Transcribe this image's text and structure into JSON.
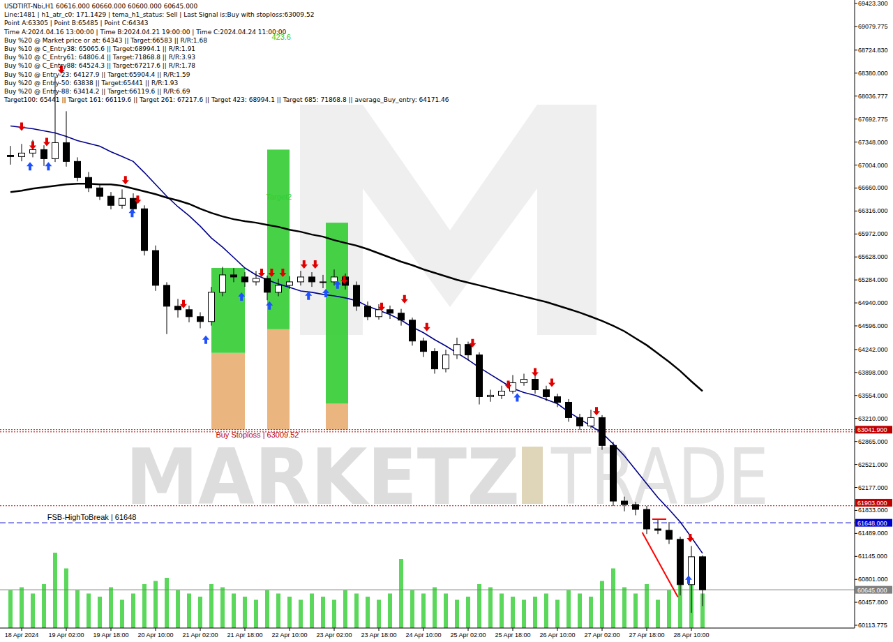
{
  "chart_data": {
    "type": "candlestick",
    "grid": false,
    "info_lines": [
      "USDTIRT-Nbi,H1  60616.000 60660.000 60600.000 60645.000",
      "Line:1481 | h1_atr_c0: 171.1429 | tema_h1_status: Sell | Last Signal is:Buy with stoploss:63009.52",
      "Point A:63305 | Point B:65485 | Point C:64343",
      "Time A:2024.04.16 13:00:00 | Time B:2024.04.21 19:00:00 | Time C:2024.04.24 11:00:00",
      "Buy %20 @ Market price or at: 64343 || Target:66583 || R/R:1.68",
      "Buy %10 @ C_Entry38: 65065.6 || Target:68994.1 || R/R:1.91",
      "Buy %10 @ C_Entry61: 64806.4 || Target:71868.8 || R/R:3.93",
      "Buy %10 @ C_Entry88: 64524.3 || Target:67217.6 || R/R:1.78",
      "Buy %10 @ Entry-23: 64127.9 || Target:65904.4 || R/R:1.59",
      "Buy %20 @ Entry-50: 63838 || Target:65441 || R/R:1.93",
      "Buy %20 @ Entry-88: 63414.2 || Target:66119.6 || R/R:6.69",
      "Target100: 65441 || Target 161: 66119.6 || Target 261: 67217.6 || Target 423: 68994.1 || Target 685: 71868.8 || average_Buy_entry: 64171.46"
    ],
    "watermark": [
      "MARKETZ",
      "TRADE"
    ],
    "categories": [
      null,
      "18 Apr 2024",
      null,
      null,
      null,
      "19 Apr 02:00",
      null,
      null,
      null,
      "19 Apr 18:00",
      null,
      null,
      null,
      "20 Apr 10:00",
      null,
      null,
      null,
      "21 Apr 02:00",
      null,
      null,
      null,
      "21 Apr 18:00",
      null,
      null,
      null,
      "22 Apr 10:00",
      null,
      null,
      null,
      "23 Apr 02:00",
      null,
      null,
      null,
      "23 Apr 18:00",
      null,
      null,
      null,
      "24 Apr 10:00",
      null,
      null,
      null,
      "25 Apr 02:00",
      null,
      null,
      null,
      "25 Apr 18:00",
      null,
      null,
      null,
      "26 Apr 10:00",
      null,
      null,
      null,
      "27 Apr 02:00",
      null,
      null,
      null,
      "27 Apr 18:00",
      null,
      null,
      null,
      "28 Apr 10:00",
      null
    ],
    "ylim": [
      60072,
      69475
    ],
    "yticks": [
      {
        "value": 69423.3,
        "label": "69423.300"
      },
      {
        "value": 69079.775,
        "label": "69079.775"
      },
      {
        "value": 68724.83,
        "label": "68724.830"
      },
      {
        "value": 68380,
        "label": "68380.000"
      },
      {
        "value": 68036.777,
        "label": "68036.777"
      },
      {
        "value": 67692.775,
        "label": "67692.775"
      },
      {
        "value": 67348,
        "label": "67348.000"
      },
      {
        "value": 67004,
        "label": "67004.000"
      },
      {
        "value": 66660,
        "label": "66660.000"
      },
      {
        "value": 66316,
        "label": "66316.000"
      },
      {
        "value": 65972,
        "label": "65972.000"
      },
      {
        "value": 65628,
        "label": "65628.000"
      },
      {
        "value": 65284,
        "label": "65284.000"
      },
      {
        "value": 64940,
        "label": "64940.000"
      },
      {
        "value": 64596,
        "label": "64596.000"
      },
      {
        "value": 64242,
        "label": "64242.000"
      },
      {
        "value": 63898,
        "label": "63898.000"
      },
      {
        "value": 63554,
        "label": "63554.000"
      },
      {
        "value": 63210,
        "label": "63210.000"
      },
      {
        "value": 62865,
        "label": "62865.000"
      },
      {
        "value": 62521,
        "label": "62521.000"
      },
      {
        "value": 62177,
        "label": "62177.000"
      },
      {
        "value": 61833,
        "label": "61833.000"
      },
      {
        "value": 61489,
        "label": "61489.000"
      },
      {
        "value": 61145,
        "label": "61145.000"
      },
      {
        "value": 60801,
        "label": "60801.000"
      },
      {
        "value": 60457.8,
        "label": "60457.800"
      },
      {
        "value": 60113.775,
        "label": "60113.775"
      }
    ],
    "y2lim": [
      0,
      1000
    ],
    "series": [
      {
        "type": "candlestick",
        "color": "#000000",
        "open": [
          67150,
          67131,
          67183,
          67235,
          67099,
          67339,
          67058,
          66818,
          66662,
          66537,
          66401,
          66505,
          66349,
          65724,
          65203,
          64890,
          64838,
          64734,
          64661,
          65099,
          65359,
          65328,
          65255,
          65307,
          65099,
          65203,
          65255,
          65328,
          65255,
          65255,
          65328,
          65203,
          64890,
          64734,
          64838,
          64786,
          64682,
          64369,
          64213,
          63952,
          64161,
          64317,
          64161,
          63536,
          63557,
          63619,
          63744,
          63796,
          63640,
          63536,
          63452,
          63223,
          63098,
          63223,
          62806,
          61973,
          61921,
          61848,
          61556,
          61535,
          61400,
          60722,
          61139
        ],
        "high": [
          67290,
          67320,
          67380,
          67300,
          68330,
          67810,
          67120,
          66900,
          66720,
          66600,
          66640,
          66580,
          66400,
          65800,
          65250,
          65000,
          64900,
          64800,
          65180,
          65480,
          65460,
          65400,
          65420,
          65350,
          65300,
          65340,
          65420,
          65400,
          65360,
          65440,
          65380,
          65260,
          64960,
          64920,
          64900,
          64850,
          64720,
          64420,
          64260,
          64240,
          64420,
          64360,
          64200,
          63640,
          63700,
          63860,
          63880,
          63860,
          63700,
          63580,
          63500,
          63280,
          63340,
          63260,
          62860,
          62040,
          61960,
          61900,
          61700,
          61660,
          61440,
          61300,
          61160
        ],
        "low": [
          67010,
          67060,
          67120,
          66990,
          67050,
          66980,
          66760,
          66600,
          66480,
          66340,
          66350,
          66280,
          65650,
          65120,
          64473,
          64720,
          64650,
          64560,
          64600,
          65040,
          65250,
          65180,
          65200,
          64980,
          65040,
          65150,
          65200,
          65180,
          65160,
          65200,
          65140,
          64820,
          64680,
          64690,
          64700,
          64600,
          64300,
          64130,
          63880,
          63900,
          64100,
          64080,
          63420,
          63460,
          63500,
          63580,
          63700,
          63580,
          63470,
          63380,
          63160,
          63040,
          63060,
          62740,
          61900,
          61820,
          61760,
          61480,
          61480,
          61330,
          60560,
          60300,
          60400
        ],
        "close": [
          67131,
          67183,
          67235,
          67099,
          67339,
          67058,
          66818,
          66662,
          66537,
          66401,
          66505,
          66349,
          65724,
          65203,
          64890,
          64838,
          64734,
          64661,
          65099,
          65359,
          65328,
          65255,
          65307,
          65099,
          65203,
          65255,
          65328,
          65255,
          65255,
          65328,
          65203,
          64890,
          64734,
          64838,
          64786,
          64682,
          64369,
          64213,
          63952,
          64161,
          64317,
          64161,
          63536,
          63557,
          63619,
          63744,
          63796,
          63640,
          63536,
          63452,
          63223,
          63098,
          63223,
          62806,
          61973,
          61921,
          61848,
          61556,
          61535,
          61400,
          60722,
          61139,
          60645
        ]
      },
      {
        "type": "line",
        "color": "#00008b",
        "line_style": "solid",
        "values": [
          67589,
          67568,
          67547,
          67516,
          67485,
          67433,
          67370,
          67328,
          67287,
          67203,
          67131,
          67058,
          66891,
          66714,
          66537,
          66380,
          66245,
          66088,
          65911,
          65776,
          65620,
          65463,
          65359,
          65286,
          65224,
          65172,
          65119,
          65099,
          65067,
          65046,
          65015,
          64974,
          64890,
          64828,
          64765,
          64682,
          64578,
          64494,
          64390,
          64296,
          64192,
          64088,
          63973,
          63869,
          63765,
          63661,
          63598,
          63557,
          63494,
          63431,
          63306,
          63202,
          63098,
          62994,
          62827,
          62650,
          62442,
          62233,
          62025,
          61848,
          61660,
          61431,
          61191
        ]
      },
      {
        "type": "line",
        "color": "#000000",
        "line_style": "solid",
        "values": [
          66599,
          66620,
          66651,
          66672,
          66693,
          66714,
          66724,
          66724,
          66714,
          66714,
          66693,
          66651,
          66610,
          66568,
          66516,
          66474,
          66422,
          66349,
          66287,
          66235,
          66193,
          66162,
          66141,
          66109,
          66078,
          66036,
          66005,
          65963,
          65932,
          65880,
          65838,
          65797,
          65745,
          65682,
          65620,
          65557,
          65505,
          65442,
          65390,
          65338,
          65286,
          65244,
          65203,
          65161,
          65119,
          65078,
          65036,
          64994,
          64953,
          64901,
          64849,
          64796,
          64734,
          64671,
          64598,
          64515,
          64411,
          64307,
          64182,
          64057,
          63921,
          63765,
          63619
        ]
      },
      {
        "type": "bar",
        "axis": "y2",
        "color": "#32cd32",
        "values": [
          60,
          65,
          55,
          70,
          120,
          95,
          60,
          55,
          50,
          65,
          45,
          55,
          70,
          75,
          80,
          60,
          55,
          50,
          70,
          65,
          55,
          50,
          45,
          60,
          55,
          50,
          45,
          55,
          50,
          45,
          60,
          55,
          50,
          45,
          55,
          110,
          60,
          55,
          65,
          55,
          45,
          50,
          70,
          65,
          55,
          50,
          45,
          50,
          55,
          45,
          60,
          55,
          50,
          75,
          95,
          65,
          55,
          70,
          45,
          60,
          85,
          90,
          55
        ]
      }
    ],
    "hlines": [
      {
        "value": 63041.9,
        "label": "63041.900",
        "color": "#c00000",
        "line_style": "dotted"
      },
      {
        "value": 63009.52,
        "color": "#c00000",
        "line_style": "dotted"
      },
      {
        "value": 61903,
        "label": "61903.000",
        "color": "#c00000",
        "line_style": "dotted"
      },
      {
        "value": 61648,
        "label": "61648.000",
        "color": "#0000cd",
        "line_style": "dashed"
      },
      {
        "value": 60645,
        "label": "60645.000",
        "color": "#808080",
        "line_style": "solid"
      }
    ],
    "zones": [
      {
        "x0": 18,
        "x1": 21,
        "top": 65463,
        "mid": 64192,
        "bottom": 63041.9
      },
      {
        "x0": 23,
        "x1": 25,
        "top": 67235,
        "mid": 64546,
        "bottom": 63041.9
      },
      {
        "x0": 28.25,
        "x1": 30.25,
        "top": 66141,
        "mid": 63431,
        "bottom": 63041.9
      }
    ],
    "annotations": [
      {
        "text": "Buy Stoploss | 63009.52",
        "x": 18.4,
        "y": 62921,
        "color": "#c00000"
      },
      {
        "text": "FSB-HighToBreak | 61648",
        "x": 3.3,
        "y": 61691,
        "color": "#000000"
      },
      {
        "text": "Target2",
        "x": 22.9,
        "y": 66484,
        "color": "#32cd32"
      },
      {
        "text": "423.6",
        "x": 23.4,
        "y": 68881,
        "color": "#32cd32"
      }
    ],
    "signals": {
      "sell": {
        "color": "#e00000",
        "points": [
          [
            1,
            67547
          ],
          [
            2,
            67266
          ],
          [
            3.25,
            67318
          ],
          [
            4.56,
            68402
          ],
          [
            10.3,
            66745
          ],
          [
            11.4,
            66453
          ],
          [
            15.5,
            64890
          ],
          [
            22.5,
            65359
          ],
          [
            23.4,
            65359
          ],
          [
            24.4,
            65359
          ],
          [
            26.3,
            65484
          ],
          [
            27.3,
            65484
          ],
          [
            29.9,
            65255
          ],
          [
            33.25,
            64849
          ],
          [
            35.3,
            64963
          ],
          [
            37.3,
            64546
          ],
          [
            41.4,
            64307
          ],
          [
            44.6,
            63682
          ],
          [
            47,
            63869
          ],
          [
            48.5,
            63713
          ],
          [
            52.5,
            63286
          ],
          [
            60.9,
            61389
          ]
        ]
      },
      "buy": {
        "color": "#1e50ff",
        "points": [
          [
            1.75,
            67016
          ],
          [
            3.4,
            67016
          ],
          [
            10.9,
            66318
          ],
          [
            17.5,
            64421
          ],
          [
            20.7,
            65067
          ],
          [
            23.2,
            64932
          ],
          [
            26.7,
            65078
          ],
          [
            28.25,
            65119
          ],
          [
            29.3,
            65245
          ],
          [
            45.4,
            63557
          ],
          [
            60.75,
            60826
          ]
        ]
      }
    },
    "trend_lines": [
      {
        "x0": 56.6,
        "y0": 61504,
        "x1": 59.8,
        "y1": 60535,
        "color": "#ff0000"
      },
      {
        "x0": 57.5,
        "y0": 61702,
        "x1": 58.75,
        "y1": 61702,
        "color": "#ff0000"
      }
    ]
  }
}
